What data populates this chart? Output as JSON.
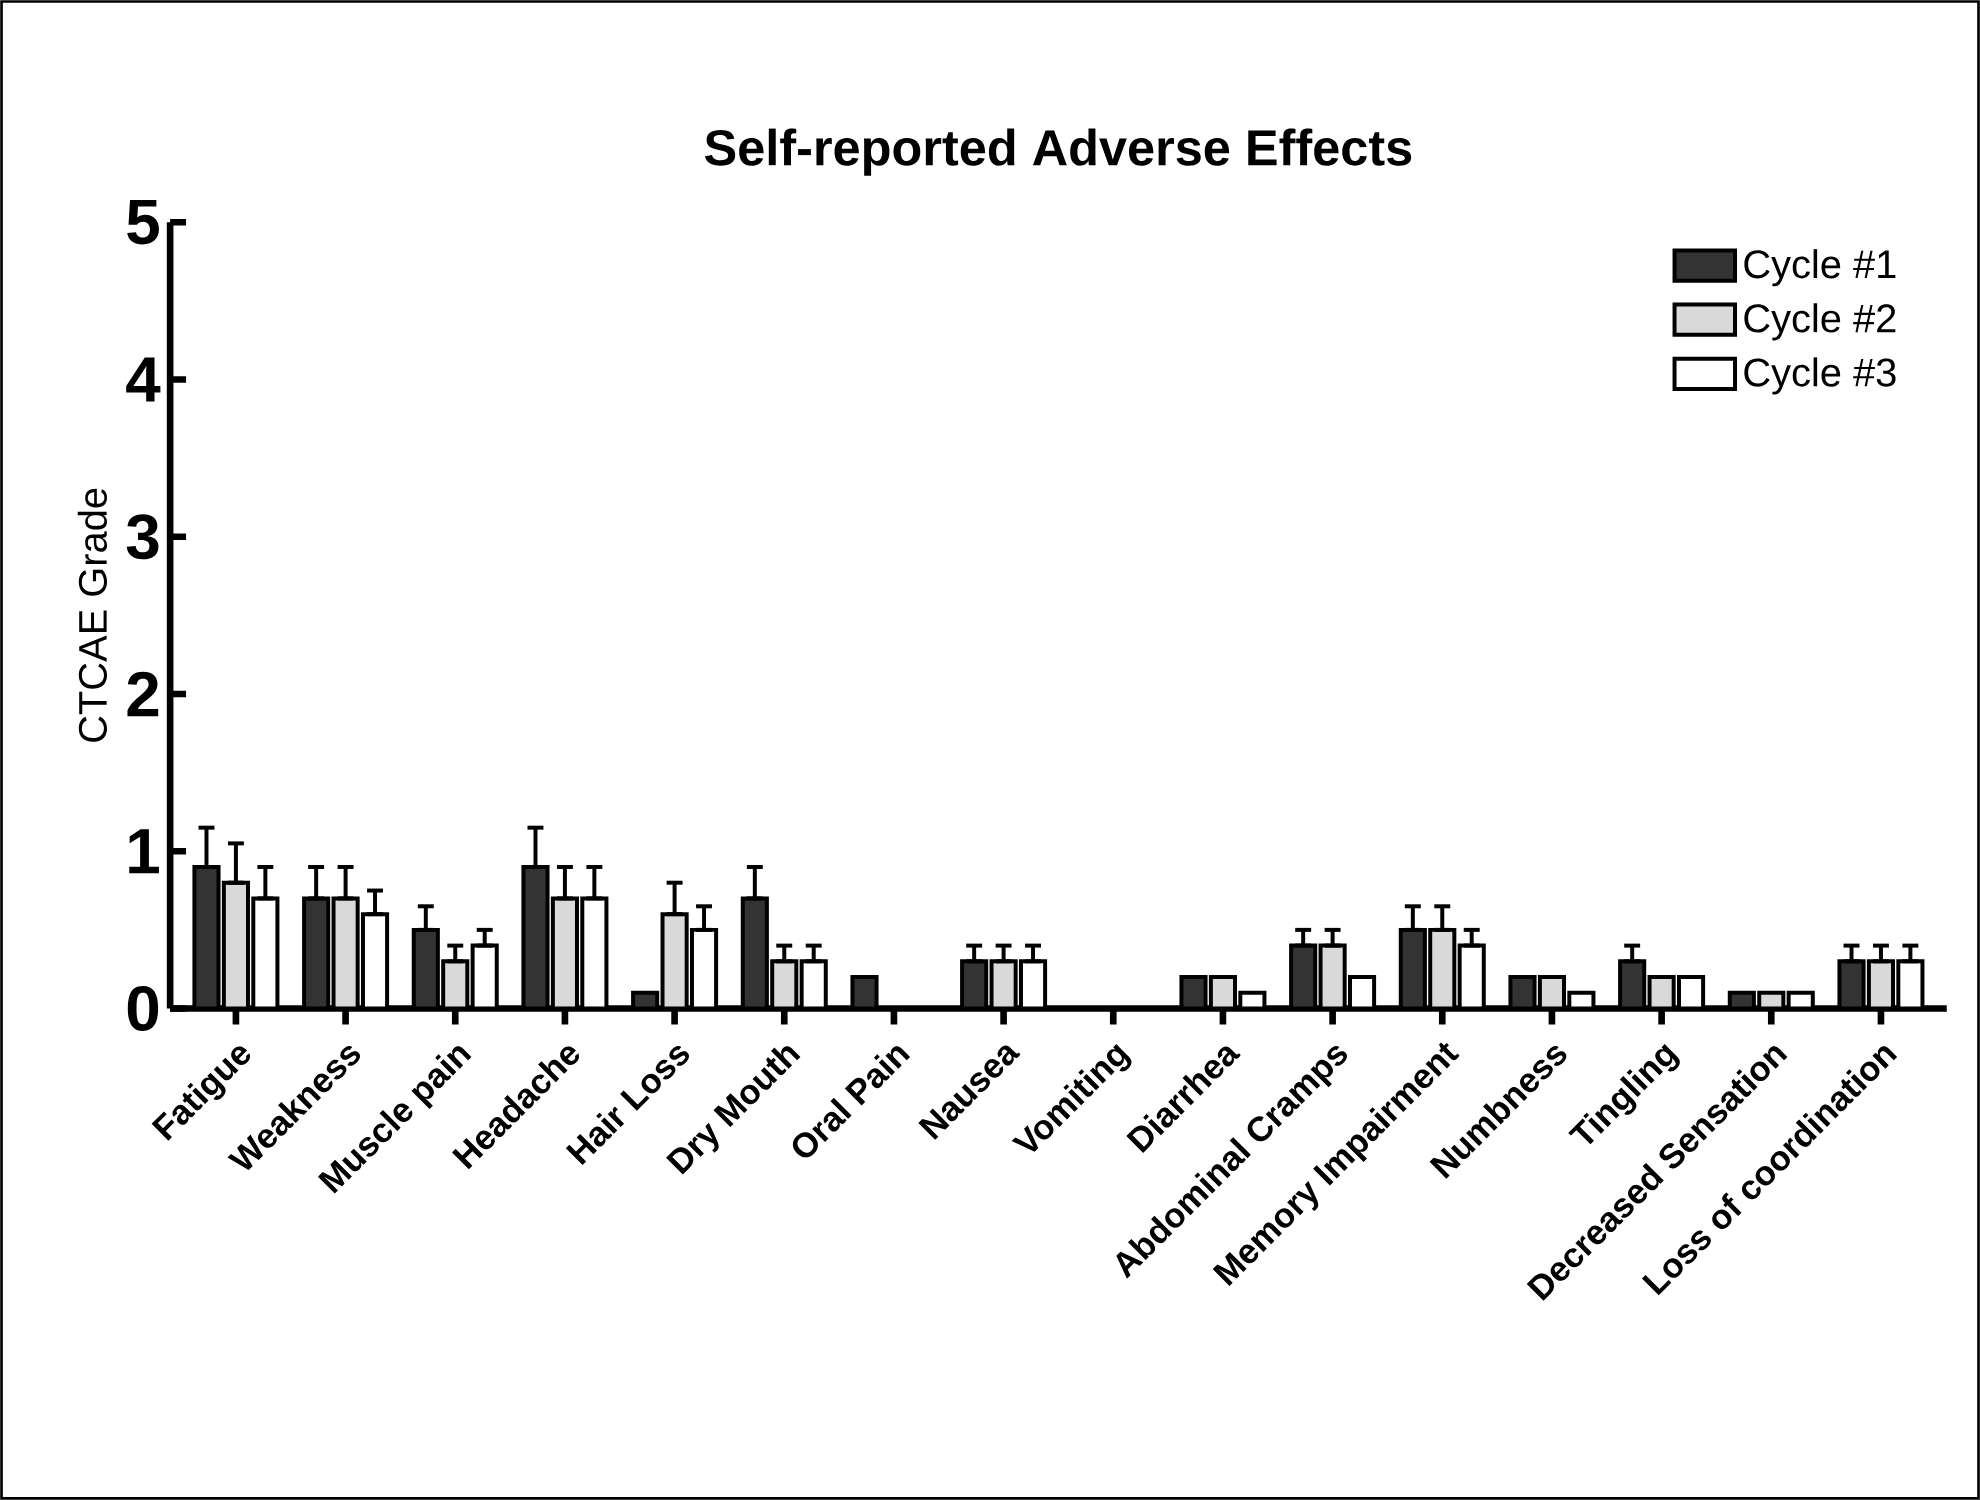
{
  "chart_data": {
    "type": "bar",
    "title": "Self-reported Adverse Effects",
    "ylabel": "CTCAE Grade",
    "categories": [
      "Fatigue",
      "Weakness",
      "Muscle pain",
      "Headache",
      "Hair Loss",
      "Dry Mouth",
      "Oral Pain",
      "Nausea",
      "Vomiting",
      "Diarrhea",
      "Abdominal Cramps",
      "Memory Impairment",
      "Numbness",
      "Tingling",
      "Decreased Sensation",
      "Loss of coordination"
    ],
    "series": [
      {
        "name": "Cycle #1",
        "color": "#333333",
        "values": [
          0.9,
          0.7,
          0.5,
          0.9,
          0.1,
          0.7,
          0.2,
          0.3,
          0,
          0.2,
          0.4,
          0.5,
          0.2,
          0.3,
          0.1,
          0.3
        ],
        "errors": [
          [
            0.9,
            1.15
          ],
          [
            0.7,
            0.9
          ],
          [
            0.5,
            0.65
          ],
          [
            0.9,
            1.15
          ],
          null,
          [
            0.7,
            0.9
          ],
          null,
          [
            0.3,
            0.4
          ],
          null,
          null,
          [
            0.4,
            0.5
          ],
          [
            0.5,
            0.65
          ],
          null,
          [
            0.3,
            0.4
          ],
          null,
          [
            0.3,
            0.4
          ]
        ]
      },
      {
        "name": "Cycle #2",
        "color": "#d9d9d9",
        "values": [
          0.8,
          0.7,
          0.3,
          0.7,
          0.6,
          0.3,
          0,
          0.3,
          0,
          0.2,
          0.4,
          0.5,
          0.2,
          0.2,
          0.1,
          0.3
        ],
        "errors": [
          [
            0.8,
            1.05
          ],
          [
            0.7,
            0.9
          ],
          [
            0.3,
            0.4
          ],
          [
            0.7,
            0.9
          ],
          [
            0.6,
            0.8
          ],
          [
            0.3,
            0.4
          ],
          null,
          [
            0.3,
            0.4
          ],
          null,
          null,
          [
            0.4,
            0.5
          ],
          [
            0.5,
            0.65
          ],
          null,
          null,
          null,
          [
            0.3,
            0.4
          ]
        ]
      },
      {
        "name": "Cycle #3",
        "color": "#ffffff",
        "values": [
          0.7,
          0.6,
          0.4,
          0.7,
          0.5,
          0.3,
          0,
          0.3,
          0,
          0.1,
          0.2,
          0.4,
          0.1,
          0.2,
          0.1,
          0.3
        ],
        "errors": [
          [
            0.7,
            0.9
          ],
          [
            0.6,
            0.75
          ],
          [
            0.4,
            0.5
          ],
          [
            0.7,
            0.9
          ],
          [
            0.5,
            0.65
          ],
          [
            0.3,
            0.4
          ],
          null,
          [
            0.3,
            0.4
          ],
          null,
          null,
          null,
          [
            0.4,
            0.5
          ],
          null,
          null,
          null,
          [
            0.3,
            0.4
          ]
        ]
      }
    ],
    "ylim": [
      0,
      5
    ],
    "yticks": [
      0,
      1,
      2,
      3,
      4,
      5
    ],
    "grid": false,
    "legend": "top right"
  }
}
